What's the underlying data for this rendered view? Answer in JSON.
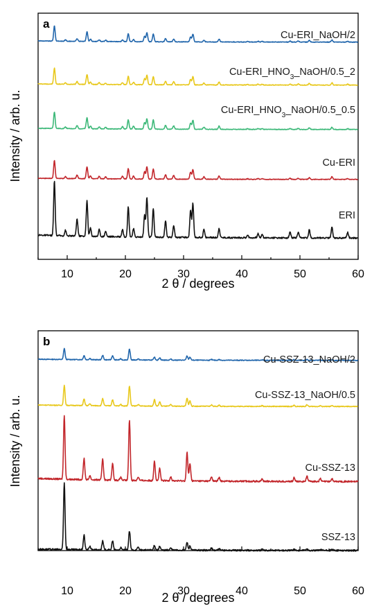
{
  "chart_data": [
    {
      "type": "line",
      "panel": "a",
      "xlabel": "2 θ / degrees",
      "ylabel": "Intensity / arb. u.",
      "xlim": [
        5,
        60
      ],
      "xticks": [
        10,
        20,
        30,
        40,
        50,
        60
      ],
      "y_axis_values_shown": false,
      "series": [
        {
          "name": "Cu-ERI_NaOH/2",
          "label_parts": [
            {
              "text": "Cu-ERI_NaOH/2"
            }
          ],
          "color": "#2166ac",
          "baseline": 10,
          "peaks": [
            [
              7.8,
              55
            ],
            [
              9.7,
              5
            ],
            [
              11.7,
              9
            ],
            [
              13.4,
              35
            ],
            [
              14.0,
              8
            ],
            [
              15.5,
              6
            ],
            [
              16.6,
              5
            ],
            [
              19.5,
              6
            ],
            [
              20.5,
              28
            ],
            [
              21.4,
              8
            ],
            [
              23.3,
              20
            ],
            [
              23.7,
              33
            ],
            [
              24.8,
              28
            ],
            [
              26.9,
              12
            ],
            [
              28.3,
              10
            ],
            [
              31.2,
              18
            ],
            [
              31.6,
              28
            ],
            [
              33.5,
              6
            ],
            [
              36.1,
              10
            ],
            [
              41,
              2
            ],
            [
              42.8,
              3
            ],
            [
              43.5,
              3
            ],
            [
              48.3,
              4
            ],
            [
              49.7,
              4
            ],
            [
              51.6,
              6
            ],
            [
              55.5,
              8
            ],
            [
              58.2,
              3
            ]
          ]
        },
        {
          "name": "Cu-ERI_HNO3_NaOH/0.5_2",
          "label_parts": [
            {
              "text": "Cu-ERI_HNO"
            },
            {
              "text": "3",
              "sub": true
            },
            {
              "text": "_NaOH/0.5_2"
            }
          ],
          "color": "#e8c81c",
          "baseline": 10,
          "peaks": [
            [
              7.8,
              58
            ],
            [
              9.7,
              5
            ],
            [
              11.7,
              10
            ],
            [
              13.4,
              36
            ],
            [
              14.0,
              9
            ],
            [
              15.5,
              7
            ],
            [
              16.6,
              5
            ],
            [
              19.5,
              7
            ],
            [
              20.5,
              30
            ],
            [
              21.4,
              9
            ],
            [
              23.3,
              22
            ],
            [
              23.7,
              35
            ],
            [
              24.8,
              30
            ],
            [
              26.9,
              13
            ],
            [
              28.3,
              11
            ],
            [
              31.2,
              20
            ],
            [
              31.6,
              30
            ],
            [
              33.5,
              7
            ],
            [
              36.1,
              11
            ],
            [
              41,
              2
            ],
            [
              42.8,
              3
            ],
            [
              43.5,
              3
            ],
            [
              48.3,
              4
            ],
            [
              49.7,
              4
            ],
            [
              51.6,
              6
            ],
            [
              55.5,
              8
            ],
            [
              58.2,
              3
            ]
          ]
        },
        {
          "name": "Cu-ERI_HNO3_NaOH/0.5_0.5",
          "label_parts": [
            {
              "text": "Cu-ERI_HNO"
            },
            {
              "text": "3",
              "sub": true
            },
            {
              "text": "_NaOH/0.5_0.5"
            }
          ],
          "color": "#3cb878",
          "baseline": 10,
          "peaks": [
            [
              7.8,
              60
            ],
            [
              9.7,
              6
            ],
            [
              11.7,
              11
            ],
            [
              13.4,
              40
            ],
            [
              14.0,
              10
            ],
            [
              15.5,
              8
            ],
            [
              16.6,
              6
            ],
            [
              19.5,
              9
            ],
            [
              20.5,
              33
            ],
            [
              21.4,
              10
            ],
            [
              23.3,
              24
            ],
            [
              23.7,
              37
            ],
            [
              24.8,
              33
            ],
            [
              26.9,
              14
            ],
            [
              28.3,
              12
            ],
            [
              31.2,
              22
            ],
            [
              31.6,
              33
            ],
            [
              33.5,
              8
            ],
            [
              36.1,
              12
            ],
            [
              41,
              2
            ],
            [
              42.8,
              3
            ],
            [
              43.5,
              3
            ],
            [
              48.3,
              4
            ],
            [
              49.7,
              4
            ],
            [
              51.6,
              6
            ],
            [
              55.5,
              8
            ],
            [
              58.2,
              3
            ]
          ]
        },
        {
          "name": "Cu-ERI",
          "label_parts": [
            {
              "text": "Cu-ERI"
            }
          ],
          "color": "#c2262b",
          "baseline": 10,
          "peaks": [
            [
              7.8,
              65
            ],
            [
              9.7,
              7
            ],
            [
              11.7,
              13
            ],
            [
              13.4,
              43
            ],
            [
              14.0,
              11
            ],
            [
              15.5,
              9
            ],
            [
              16.6,
              7
            ],
            [
              19.5,
              10
            ],
            [
              20.5,
              37
            ],
            [
              21.4,
              11
            ],
            [
              23.3,
              27
            ],
            [
              23.7,
              44
            ],
            [
              24.8,
              36
            ],
            [
              26.9,
              16
            ],
            [
              28.3,
              13
            ],
            [
              31.2,
              25
            ],
            [
              31.6,
              35
            ],
            [
              33.5,
              9
            ],
            [
              36.1,
              12
            ],
            [
              41,
              2
            ],
            [
              42.8,
              3
            ],
            [
              43.5,
              3
            ],
            [
              48.3,
              4
            ],
            [
              49.7,
              4
            ],
            [
              51.6,
              6
            ],
            [
              55.5,
              10
            ],
            [
              58.2,
              3
            ]
          ]
        },
        {
          "name": "ERI",
          "label_parts": [
            {
              "text": "ERI"
            }
          ],
          "color": "#111111",
          "baseline": 10,
          "peaks": [
            [
              7.8,
              80
            ],
            [
              9.7,
              8
            ],
            [
              11.7,
              25
            ],
            [
              13.4,
              52
            ],
            [
              14.0,
              12
            ],
            [
              15.5,
              10
            ],
            [
              16.6,
              8
            ],
            [
              19.5,
              11
            ],
            [
              20.5,
              44
            ],
            [
              21.4,
              12
            ],
            [
              23.3,
              32
            ],
            [
              23.7,
              58
            ],
            [
              24.8,
              42
            ],
            [
              26.9,
              24
            ],
            [
              28.3,
              18
            ],
            [
              31.2,
              40
            ],
            [
              31.6,
              50
            ],
            [
              33.5,
              12
            ],
            [
              36.1,
              14
            ],
            [
              41,
              4
            ],
            [
              42.8,
              6
            ],
            [
              43.5,
              5
            ],
            [
              48.3,
              9
            ],
            [
              49.7,
              8
            ],
            [
              51.6,
              12
            ],
            [
              55.5,
              16
            ],
            [
              58.2,
              8
            ]
          ]
        }
      ]
    },
    {
      "type": "line",
      "panel": "b",
      "xlabel": "2 θ / degrees",
      "ylabel": "Intensity / arb. u.",
      "xlim": [
        5,
        60
      ],
      "xticks": [
        10,
        20,
        30,
        40,
        50,
        60
      ],
      "y_axis_values_shown": false,
      "series": [
        {
          "name": "Cu-SSZ-13_NaOH/2",
          "label_parts": [
            {
              "text": "Cu-SSZ-13_NaOH/2"
            }
          ],
          "color": "#2166ac",
          "baseline": 8,
          "peaks": [
            [
              9.5,
              32
            ],
            [
              12.9,
              12
            ],
            [
              13.9,
              4
            ],
            [
              16.1,
              13
            ],
            [
              17.8,
              12
            ],
            [
              19.2,
              3
            ],
            [
              20.7,
              31
            ],
            [
              22.2,
              3
            ],
            [
              25.0,
              8
            ],
            [
              25.9,
              7
            ],
            [
              27.8,
              3
            ],
            [
              30.6,
              12
            ],
            [
              31.1,
              9
            ],
            [
              34.8,
              2
            ],
            [
              36.1,
              2
            ],
            [
              43.5,
              1.5
            ],
            [
              49,
              2
            ],
            [
              51.2,
              2
            ],
            [
              53.5,
              1.5
            ],
            [
              55.5,
              1.5
            ]
          ]
        },
        {
          "name": "Cu-SSZ-13_NaOH/0.5",
          "label_parts": [
            {
              "text": "Cu-SSZ-13_NaOH/0.5"
            }
          ],
          "color": "#e8c81c",
          "baseline": 10,
          "peaks": [
            [
              9.5,
              55
            ],
            [
              12.9,
              18
            ],
            [
              13.9,
              5
            ],
            [
              16.1,
              20
            ],
            [
              17.8,
              17
            ],
            [
              19.2,
              4
            ],
            [
              20.7,
              55
            ],
            [
              22.2,
              4
            ],
            [
              25.0,
              18
            ],
            [
              25.9,
              12
            ],
            [
              27.8,
              4
            ],
            [
              30.6,
              22
            ],
            [
              31.1,
              15
            ],
            [
              34.8,
              4
            ],
            [
              36.1,
              3
            ],
            [
              43.5,
              2
            ],
            [
              49,
              3
            ],
            [
              51.2,
              5
            ],
            [
              53.5,
              2
            ],
            [
              55.5,
              2
            ]
          ]
        },
        {
          "name": "Cu-SSZ-13",
          "label_parts": [
            {
              "text": "Cu-SSZ-13"
            }
          ],
          "color": "#c2262b",
          "baseline": 10,
          "peaks": [
            [
              9.5,
              90
            ],
            [
              12.9,
              30
            ],
            [
              13.9,
              6
            ],
            [
              16.1,
              30
            ],
            [
              17.8,
              23
            ],
            [
              19.2,
              4
            ],
            [
              20.7,
              85
            ],
            [
              22.2,
              5
            ],
            [
              25.0,
              28
            ],
            [
              25.9,
              17
            ],
            [
              27.8,
              6
            ],
            [
              30.6,
              40
            ],
            [
              31.1,
              25
            ],
            [
              34.8,
              6
            ],
            [
              36.1,
              5
            ],
            [
              43.5,
              3
            ],
            [
              49,
              5
            ],
            [
              51.2,
              8
            ],
            [
              53.5,
              4
            ],
            [
              55.5,
              4
            ]
          ]
        },
        {
          "name": "SSZ-13",
          "label_parts": [
            {
              "text": "SSZ-13"
            }
          ],
          "color": "#111111",
          "baseline": 4,
          "peaks": [
            [
              9.5,
              92
            ],
            [
              12.9,
              20
            ],
            [
              13.9,
              5
            ],
            [
              16.1,
              12
            ],
            [
              17.8,
              12
            ],
            [
              19.2,
              3
            ],
            [
              20.7,
              26
            ],
            [
              22.2,
              4
            ],
            [
              25.0,
              7
            ],
            [
              25.9,
              5
            ],
            [
              27.8,
              3
            ],
            [
              30.6,
              11
            ],
            [
              31.1,
              6
            ],
            [
              34.8,
              3
            ],
            [
              36.1,
              2
            ],
            [
              43.5,
              1.5
            ],
            [
              49,
              2
            ],
            [
              51.2,
              2
            ],
            [
              53.5,
              1.5
            ],
            [
              55.5,
              1.5
            ]
          ]
        }
      ]
    }
  ]
}
